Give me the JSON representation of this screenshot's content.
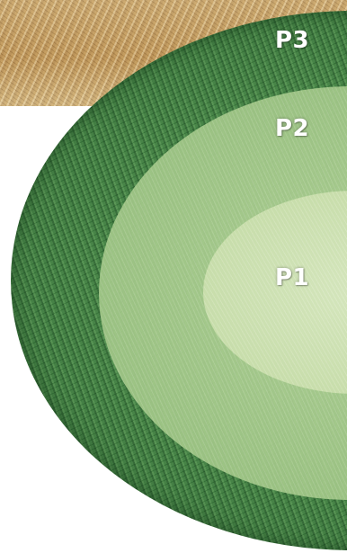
{
  "zones": {
    "outer": {
      "label": "P3",
      "color": "#3f7d42"
    },
    "middle": {
      "label": "P2",
      "color": "#a6ca8c"
    },
    "inner": {
      "label": "P1",
      "color": "#cde1b0"
    }
  },
  "background": {
    "straw_color": "#c9a874"
  }
}
